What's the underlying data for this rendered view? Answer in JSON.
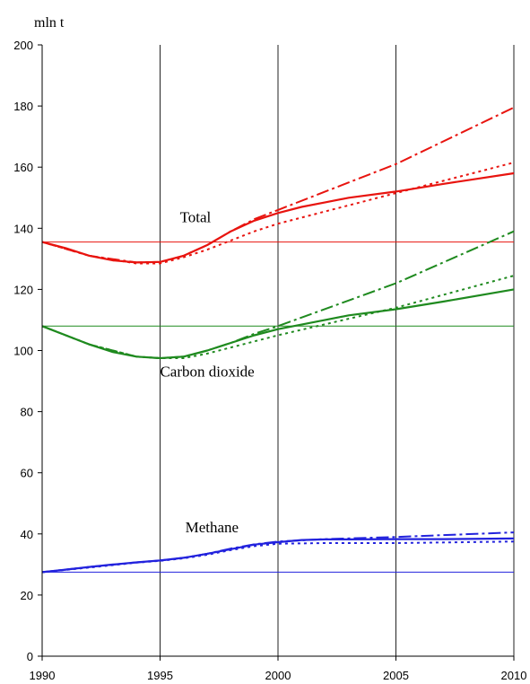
{
  "chart_data": {
    "type": "line",
    "title": "",
    "xlabel": "",
    "ylabel": "mln t",
    "xlim": [
      1990,
      2010
    ],
    "ylim": [
      0,
      200
    ],
    "x_ticks": [
      1990,
      1995,
      2000,
      2005,
      2010
    ],
    "y_ticks": [
      0,
      20,
      40,
      60,
      80,
      100,
      120,
      140,
      160,
      180,
      200
    ],
    "grid": "vertical lines at 1995, 2000, 2005",
    "annotations": [
      {
        "text": "Total",
        "x": 1996.5,
        "y": 142
      },
      {
        "text": "Carbon dioxide",
        "x": 1997.0,
        "y": 91.5
      },
      {
        "text": "Methane",
        "x": 1997.2,
        "y": 40.5
      }
    ],
    "baselines": [
      {
        "group": "total",
        "y": 135.5,
        "color": "#e8140f"
      },
      {
        "group": "co2",
        "y": 108,
        "color": "#1f8a1f"
      },
      {
        "group": "methane",
        "y": 27.5,
        "color": "#2222dd"
      }
    ],
    "series": [
      {
        "group": "total",
        "style": "solid",
        "color": "#e8140f",
        "points": [
          [
            1990,
            135.5
          ],
          [
            1991,
            133.5
          ],
          [
            1992,
            131
          ],
          [
            1993,
            129.5
          ],
          [
            1994,
            128.8
          ],
          [
            1995,
            129
          ],
          [
            1996,
            131
          ],
          [
            1997,
            134.5
          ],
          [
            1998,
            139
          ],
          [
            1999,
            142.5
          ],
          [
            2000,
            145
          ],
          [
            2001,
            147
          ],
          [
            2002,
            148.5
          ],
          [
            2003,
            150
          ],
          [
            2005,
            152
          ],
          [
            2007,
            154.5
          ],
          [
            2010,
            158
          ]
        ]
      },
      {
        "group": "total",
        "style": "dashdot",
        "color": "#e8140f",
        "points": [
          [
            1990,
            135.5
          ],
          [
            1992,
            131
          ],
          [
            1994,
            128.8
          ],
          [
            1995,
            129
          ],
          [
            1996,
            131
          ],
          [
            1997,
            134.5
          ],
          [
            1998,
            139
          ],
          [
            1999,
            143
          ],
          [
            2000,
            146
          ],
          [
            2005,
            161
          ],
          [
            2010,
            179.5
          ]
        ]
      },
      {
        "group": "total",
        "style": "dotted",
        "color": "#e8140f",
        "points": [
          [
            1990,
            135.5
          ],
          [
            1992,
            131
          ],
          [
            1994,
            128.5
          ],
          [
            1995,
            128.5
          ],
          [
            1996,
            130.5
          ],
          [
            1997,
            133
          ],
          [
            1998,
            136
          ],
          [
            1999,
            139
          ],
          [
            2000,
            141.5
          ],
          [
            2005,
            151.5
          ],
          [
            2010,
            161.5
          ]
        ]
      },
      {
        "group": "co2",
        "style": "solid",
        "color": "#1f8a1f",
        "points": [
          [
            1990,
            108
          ],
          [
            1991,
            105
          ],
          [
            1992,
            102
          ],
          [
            1993,
            99.5
          ],
          [
            1994,
            98
          ],
          [
            1995,
            97.5
          ],
          [
            1996,
            98
          ],
          [
            1997,
            100
          ],
          [
            1998,
            102.5
          ],
          [
            1999,
            105
          ],
          [
            2000,
            107
          ],
          [
            2001,
            108.5
          ],
          [
            2002,
            110
          ],
          [
            2003,
            111.5
          ],
          [
            2005,
            113.5
          ],
          [
            2007,
            116
          ],
          [
            2010,
            120
          ]
        ]
      },
      {
        "group": "co2",
        "style": "dashdot",
        "color": "#1f8a1f",
        "points": [
          [
            1990,
            108
          ],
          [
            1992,
            102
          ],
          [
            1994,
            98
          ],
          [
            1995,
            97.5
          ],
          [
            1996,
            98
          ],
          [
            1997,
            100
          ],
          [
            1998,
            102.5
          ],
          [
            1999,
            105.5
          ],
          [
            2000,
            108
          ],
          [
            2005,
            122
          ],
          [
            2010,
            139
          ]
        ]
      },
      {
        "group": "co2",
        "style": "dotted",
        "color": "#1f8a1f",
        "points": [
          [
            1990,
            108
          ],
          [
            1992,
            102
          ],
          [
            1994,
            98
          ],
          [
            1995,
            97.5
          ],
          [
            1996,
            97.5
          ],
          [
            1997,
            99
          ],
          [
            1998,
            101
          ],
          [
            1999,
            103
          ],
          [
            2000,
            105
          ],
          [
            2005,
            114
          ],
          [
            2010,
            124.5
          ]
        ]
      },
      {
        "group": "methane",
        "style": "solid",
        "color": "#2222dd",
        "points": [
          [
            1990,
            27.5
          ],
          [
            1991,
            28.3
          ],
          [
            1992,
            29.2
          ],
          [
            1993,
            30
          ],
          [
            1994,
            30.7
          ],
          [
            1995,
            31.3
          ],
          [
            1996,
            32.2
          ],
          [
            1997,
            33.5
          ],
          [
            1998,
            35
          ],
          [
            1999,
            36.5
          ],
          [
            2000,
            37.3
          ],
          [
            2001,
            38
          ],
          [
            2002,
            38.2
          ],
          [
            2003,
            38.2
          ],
          [
            2005,
            38.3
          ],
          [
            2007,
            38.3
          ],
          [
            2010,
            38.5
          ]
        ]
      },
      {
        "group": "methane",
        "style": "dashdot",
        "color": "#2222dd",
        "points": [
          [
            1990,
            27.5
          ],
          [
            1992,
            29.2
          ],
          [
            1994,
            30.7
          ],
          [
            1995,
            31.3
          ],
          [
            1996,
            32.2
          ],
          [
            1997,
            33.5
          ],
          [
            1998,
            35.2
          ],
          [
            1999,
            36.6
          ],
          [
            2000,
            37.5
          ],
          [
            2002,
            38.3
          ],
          [
            2005,
            39
          ],
          [
            2010,
            40.5
          ]
        ]
      },
      {
        "group": "methane",
        "style": "dotted",
        "color": "#2222dd",
        "points": [
          [
            1990,
            27.5
          ],
          [
            1992,
            29
          ],
          [
            1994,
            30.6
          ],
          [
            1995,
            31.2
          ],
          [
            1996,
            32
          ],
          [
            1997,
            33.2
          ],
          [
            1998,
            34.7
          ],
          [
            1999,
            36
          ],
          [
            2000,
            36.8
          ],
          [
            2002,
            37
          ],
          [
            2005,
            37
          ],
          [
            2010,
            37.5
          ]
        ]
      }
    ]
  }
}
